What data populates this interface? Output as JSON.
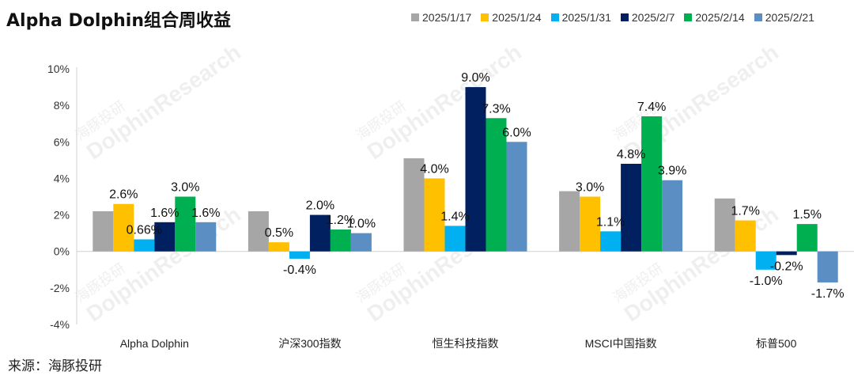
{
  "title": "Alpha Dolphin组合周收益",
  "source": "来源：海豚投研",
  "watermark": {
    "cn": "海豚投研",
    "en": "DolphinResearch"
  },
  "chart_data": {
    "type": "bar",
    "categories": [
      "Alpha Dolphin",
      "沪深300指数",
      "恒生科技指数",
      "MSCI中国指数",
      "标普500"
    ],
    "series": [
      {
        "name": "2025/1/17",
        "color": "#A6A6A6",
        "values": [
          2.2,
          2.2,
          5.1,
          3.3,
          2.9
        ],
        "labels": [
          "",
          "",
          "",
          "",
          ""
        ]
      },
      {
        "name": "2025/1/24",
        "color": "#FFC000",
        "values": [
          2.6,
          0.5,
          4.0,
          3.0,
          1.7
        ],
        "labels": [
          "2.6%",
          "0.5%",
          "4.0%",
          "3.0%",
          "1.7%"
        ]
      },
      {
        "name": "2025/1/31",
        "color": "#00B0F0",
        "values": [
          0.66,
          -0.4,
          1.4,
          1.1,
          -1.0
        ],
        "labels": [
          "0.66%",
          "-0.4%",
          "1.4%",
          "1.1%",
          "-1.0%"
        ]
      },
      {
        "name": "2025/2/7",
        "color": "#002060",
        "values": [
          1.6,
          2.0,
          9.0,
          4.8,
          -0.2
        ],
        "labels": [
          "1.6%",
          "2.0%",
          "9.0%",
          "4.8%",
          "-0.2%"
        ]
      },
      {
        "name": "2025/2/14",
        "color": "#00B050",
        "values": [
          3.0,
          1.2,
          7.3,
          7.4,
          1.5
        ],
        "labels": [
          "3.0%",
          "1.2%",
          "7.3%",
          "7.4%",
          "1.5%"
        ]
      },
      {
        "name": "2025/2/21",
        "color": "#5B8FC4",
        "values": [
          1.6,
          1.0,
          6.0,
          3.9,
          -1.7
        ],
        "labels": [
          "1.6%",
          "1.0%",
          "6.0%",
          "3.9%",
          "-1.7%"
        ]
      }
    ],
    "ylim": [
      -4,
      10
    ],
    "yticks": [
      -4,
      -2,
      0,
      2,
      4,
      6,
      8,
      10
    ],
    "ytick_labels": [
      "-4%",
      "-2%",
      "0%",
      "2%",
      "4%",
      "6%",
      "8%",
      "10%"
    ],
    "legend_position": "top-right",
    "grid": false
  }
}
